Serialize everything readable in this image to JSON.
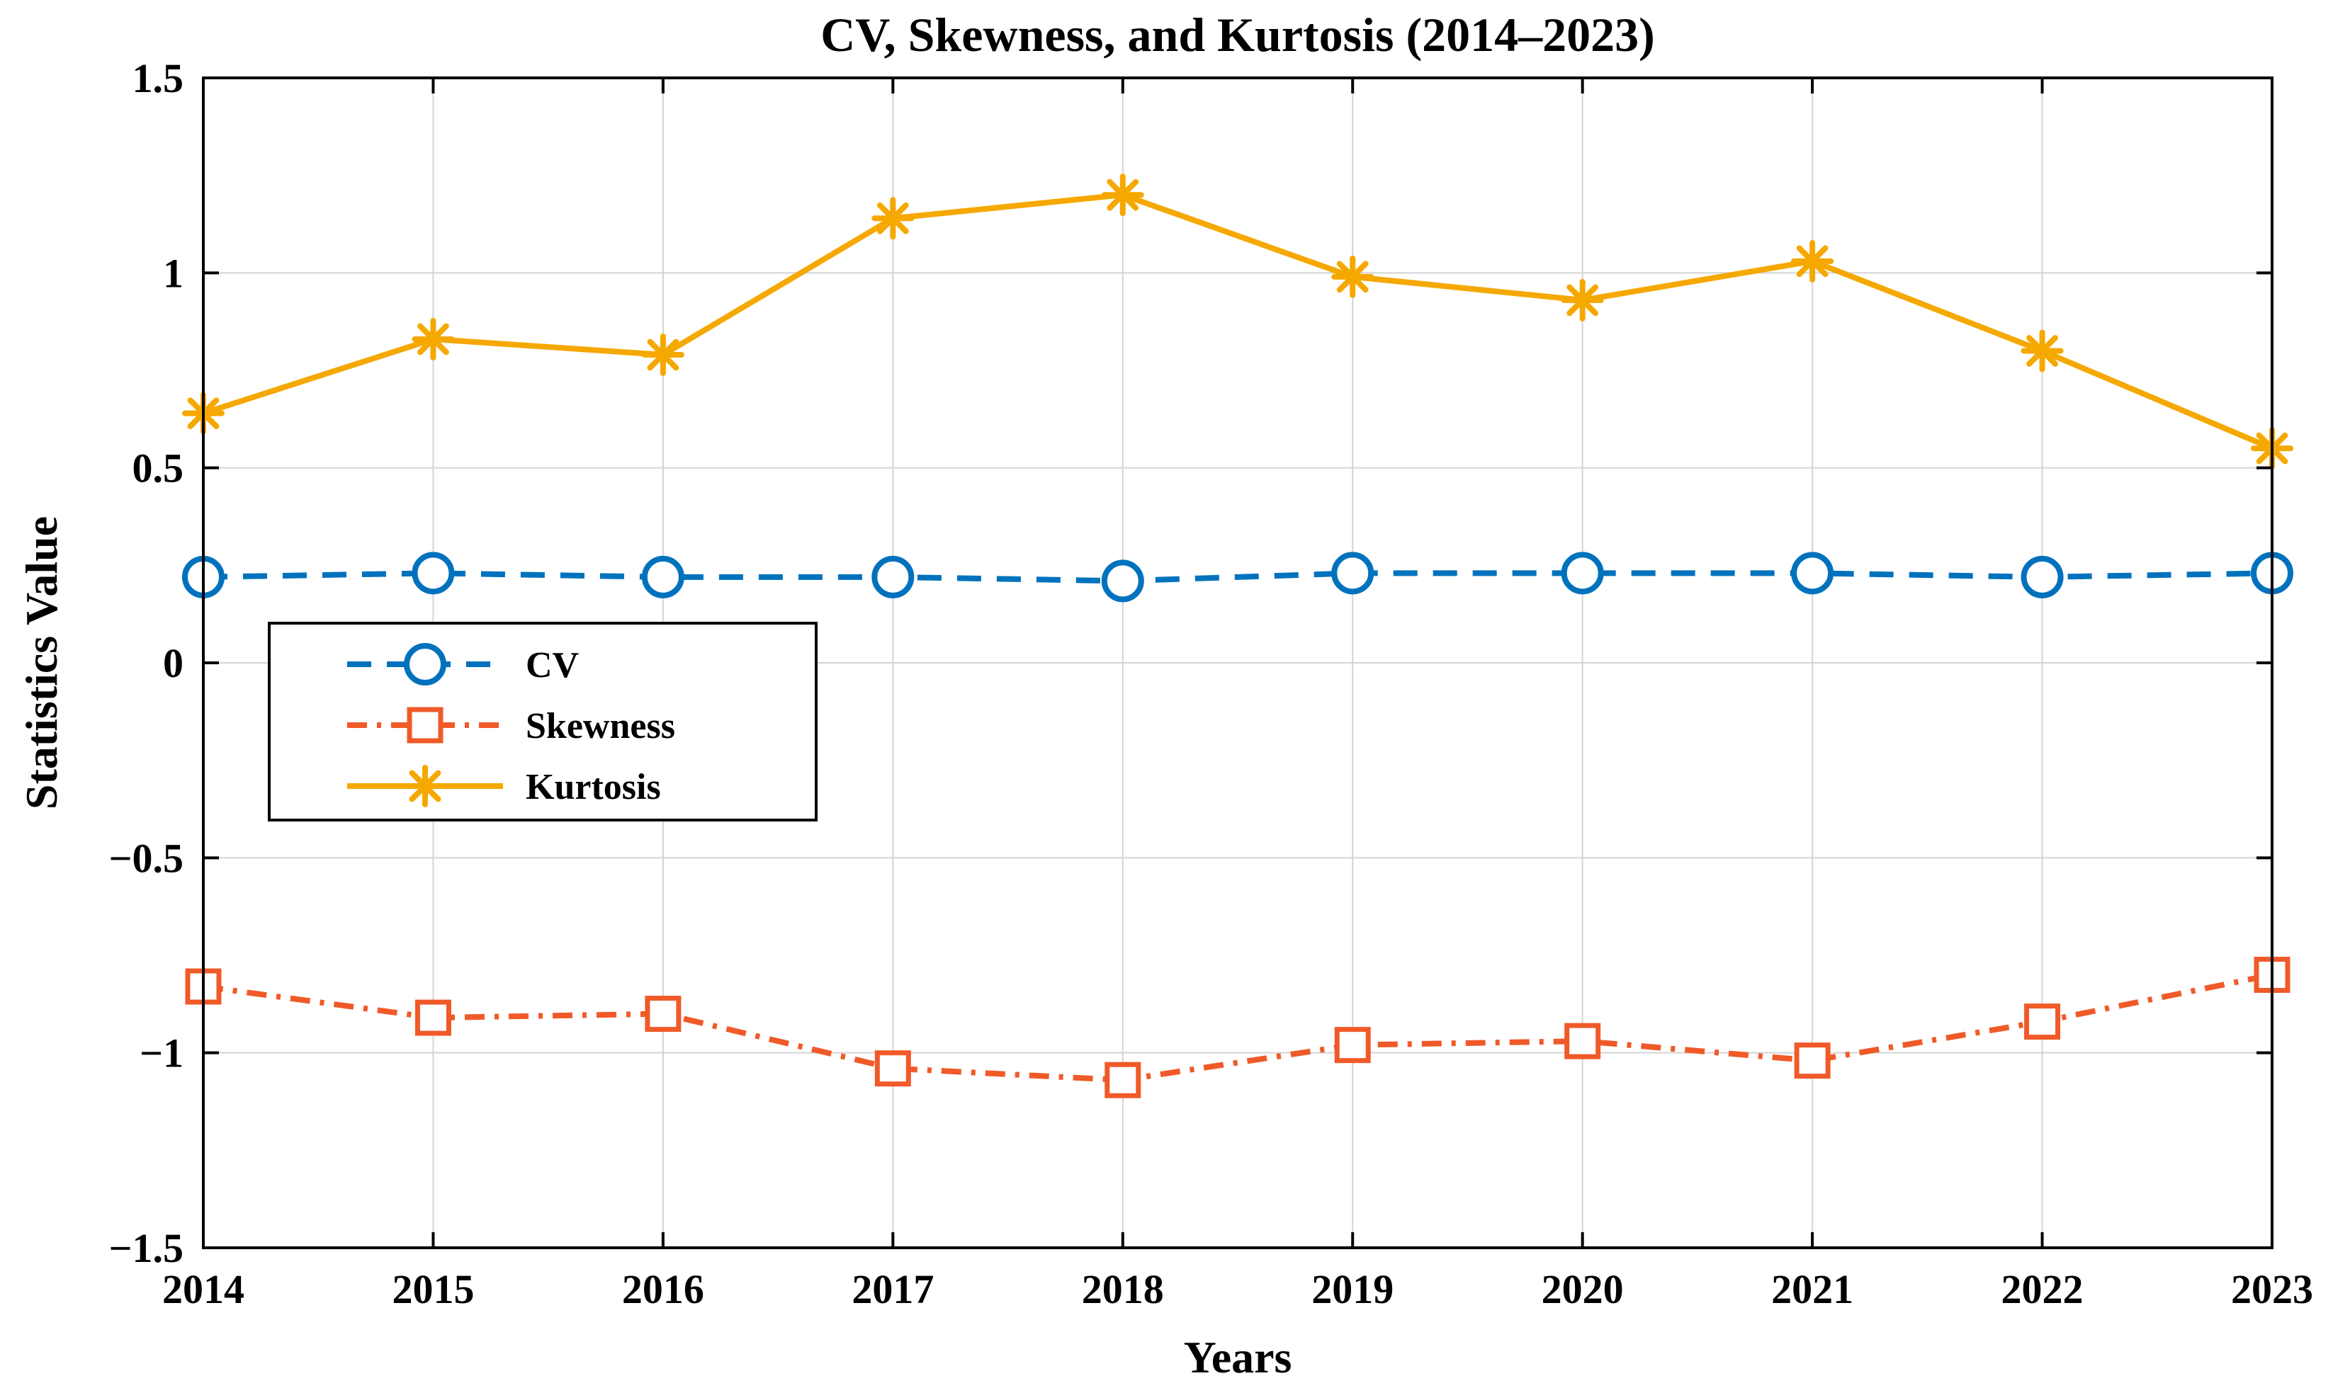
{
  "chart_data": {
    "type": "line",
    "title": "CV, Skewness, and Kurtosis (2014–2023)",
    "xlabel": "Years",
    "ylabel": "Statistics Value",
    "x": [
      2014,
      2015,
      2016,
      2017,
      2018,
      2019,
      2020,
      2021,
      2022,
      2023
    ],
    "x_tick_labels": [
      "2014",
      "2015",
      "2016",
      "2017",
      "2018",
      "2019",
      "2020",
      "2021",
      "2022",
      "2023"
    ],
    "y_ticks": [
      1.5,
      1,
      0.5,
      0,
      -0.5,
      -1,
      -1.5
    ],
    "y_tick_labels": [
      "1.5",
      "1",
      "0.5",
      "0",
      "−0.5",
      "−1",
      "−1.5"
    ],
    "xlim": [
      2014,
      2023
    ],
    "ylim": [
      -1.5,
      1.5
    ],
    "grid": true,
    "legend_position": "left-center",
    "series": [
      {
        "name": "CV",
        "color": "#0072BD",
        "line_style": "dashed",
        "marker": "circle",
        "values": [
          0.22,
          0.23,
          0.22,
          0.22,
          0.21,
          0.23,
          0.23,
          0.23,
          0.22,
          0.23
        ]
      },
      {
        "name": "Skewness",
        "color": "#F05A28",
        "line_style": "dash-dot",
        "marker": "square",
        "values": [
          -0.83,
          -0.91,
          -0.9,
          -1.04,
          -1.07,
          -0.98,
          -0.97,
          -1.02,
          -0.92,
          -0.8
        ]
      },
      {
        "name": "Kurtosis",
        "color": "#F5A800",
        "line_style": "solid",
        "marker": "asterisk",
        "values": [
          0.64,
          0.83,
          0.79,
          1.14,
          1.2,
          0.99,
          0.93,
          1.03,
          0.8,
          0.55
        ]
      }
    ]
  }
}
